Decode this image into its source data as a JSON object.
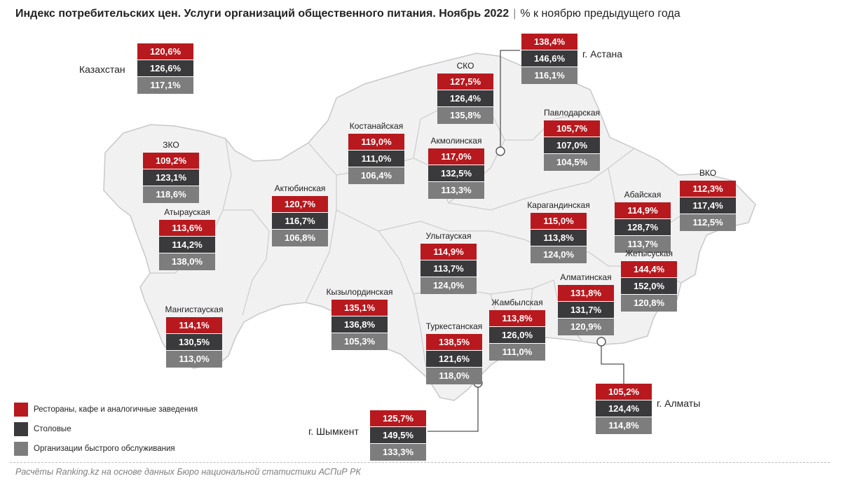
{
  "title": {
    "main": "Индекс потребительских цен. Услуги организаций общественного питания. Ноябрь 2022",
    "sep": "|",
    "sub": "% к ноябрю предыдущего года"
  },
  "colors": {
    "restaurants": "#b8191e",
    "canteens": "#3a3a3c",
    "fast_food": "#7d7d7d",
    "map_fill": "#f1f1f1",
    "map_border": "#c8c8c8"
  },
  "legend": [
    {
      "label": "Рестораны, кафе и аналогичные заведения",
      "color": "#b8191e"
    },
    {
      "label": "Столовые",
      "color": "#3a3a3c"
    },
    {
      "label": "Организации быстрого обслуживания",
      "color": "#7d7d7d"
    }
  ],
  "regions": {
    "kazakhstan": {
      "name": "Казахстан",
      "values": [
        "120,6%",
        "126,6%",
        "117,1%"
      ]
    },
    "sko": {
      "name": "СКО",
      "values": [
        "127,5%",
        "126,4%",
        "135,8%"
      ]
    },
    "astana": {
      "name": "г. Астана",
      "values": [
        "138,4%",
        "146,6%",
        "116,1%"
      ]
    },
    "kostanay": {
      "name": "Костанайская",
      "values": [
        "119,0%",
        "111,0%",
        "106,4%"
      ]
    },
    "akmola": {
      "name": "Акмолинская",
      "values": [
        "117,0%",
        "132,5%",
        "113,3%"
      ]
    },
    "pavlodar": {
      "name": "Павлодарская",
      "values": [
        "105,7%",
        "107,0%",
        "104,5%"
      ]
    },
    "zko": {
      "name": "ЗКО",
      "values": [
        "109,2%",
        "123,1%",
        "118,6%"
      ]
    },
    "aktobe": {
      "name": "Актюбинская",
      "values": [
        "120,7%",
        "116,7%",
        "106,8%"
      ]
    },
    "vko": {
      "name": "ВКО",
      "values": [
        "112,3%",
        "117,4%",
        "112,5%"
      ]
    },
    "atyrau": {
      "name": "Атырауская",
      "values": [
        "113,6%",
        "114,2%",
        "138,0%"
      ]
    },
    "karaganda": {
      "name": "Карагандинская",
      "values": [
        "115,0%",
        "113,8%",
        "124,0%"
      ]
    },
    "abay": {
      "name": "Абайская",
      "values": [
        "114,9%",
        "128,7%",
        "113,7%"
      ]
    },
    "ulytau": {
      "name": "Улытауская",
      "values": [
        "114,9%",
        "113,7%",
        "124,0%"
      ]
    },
    "zhetysu": {
      "name": "Жетысуская",
      "values": [
        "144,4%",
        "152,0%",
        "120,8%"
      ]
    },
    "kyzylorda": {
      "name": "Кызылординская",
      "values": [
        "135,1%",
        "136,8%",
        "105,3%"
      ]
    },
    "almaty_obl": {
      "name": "Алматинская",
      "values": [
        "131,8%",
        "131,7%",
        "120,9%"
      ]
    },
    "mangystau": {
      "name": "Мангистауская",
      "values": [
        "114,1%",
        "130,5%",
        "113,0%"
      ]
    },
    "zhambyl": {
      "name": "Жамбылская",
      "values": [
        "113,8%",
        "126,0%",
        "111,0%"
      ]
    },
    "turkestan": {
      "name": "Туркестанская",
      "values": [
        "138,5%",
        "121,6%",
        "118,0%"
      ]
    },
    "almaty": {
      "name": "г. Алматы",
      "values": [
        "105,2%",
        "124,4%",
        "114,8%"
      ]
    },
    "shymkent": {
      "name": "г. Шымкент",
      "values": [
        "125,7%",
        "149,5%",
        "133,3%"
      ]
    }
  },
  "footer": "Расчёты Ranking.kz на основе данных Бюро национальной статистики АСПиР РК"
}
